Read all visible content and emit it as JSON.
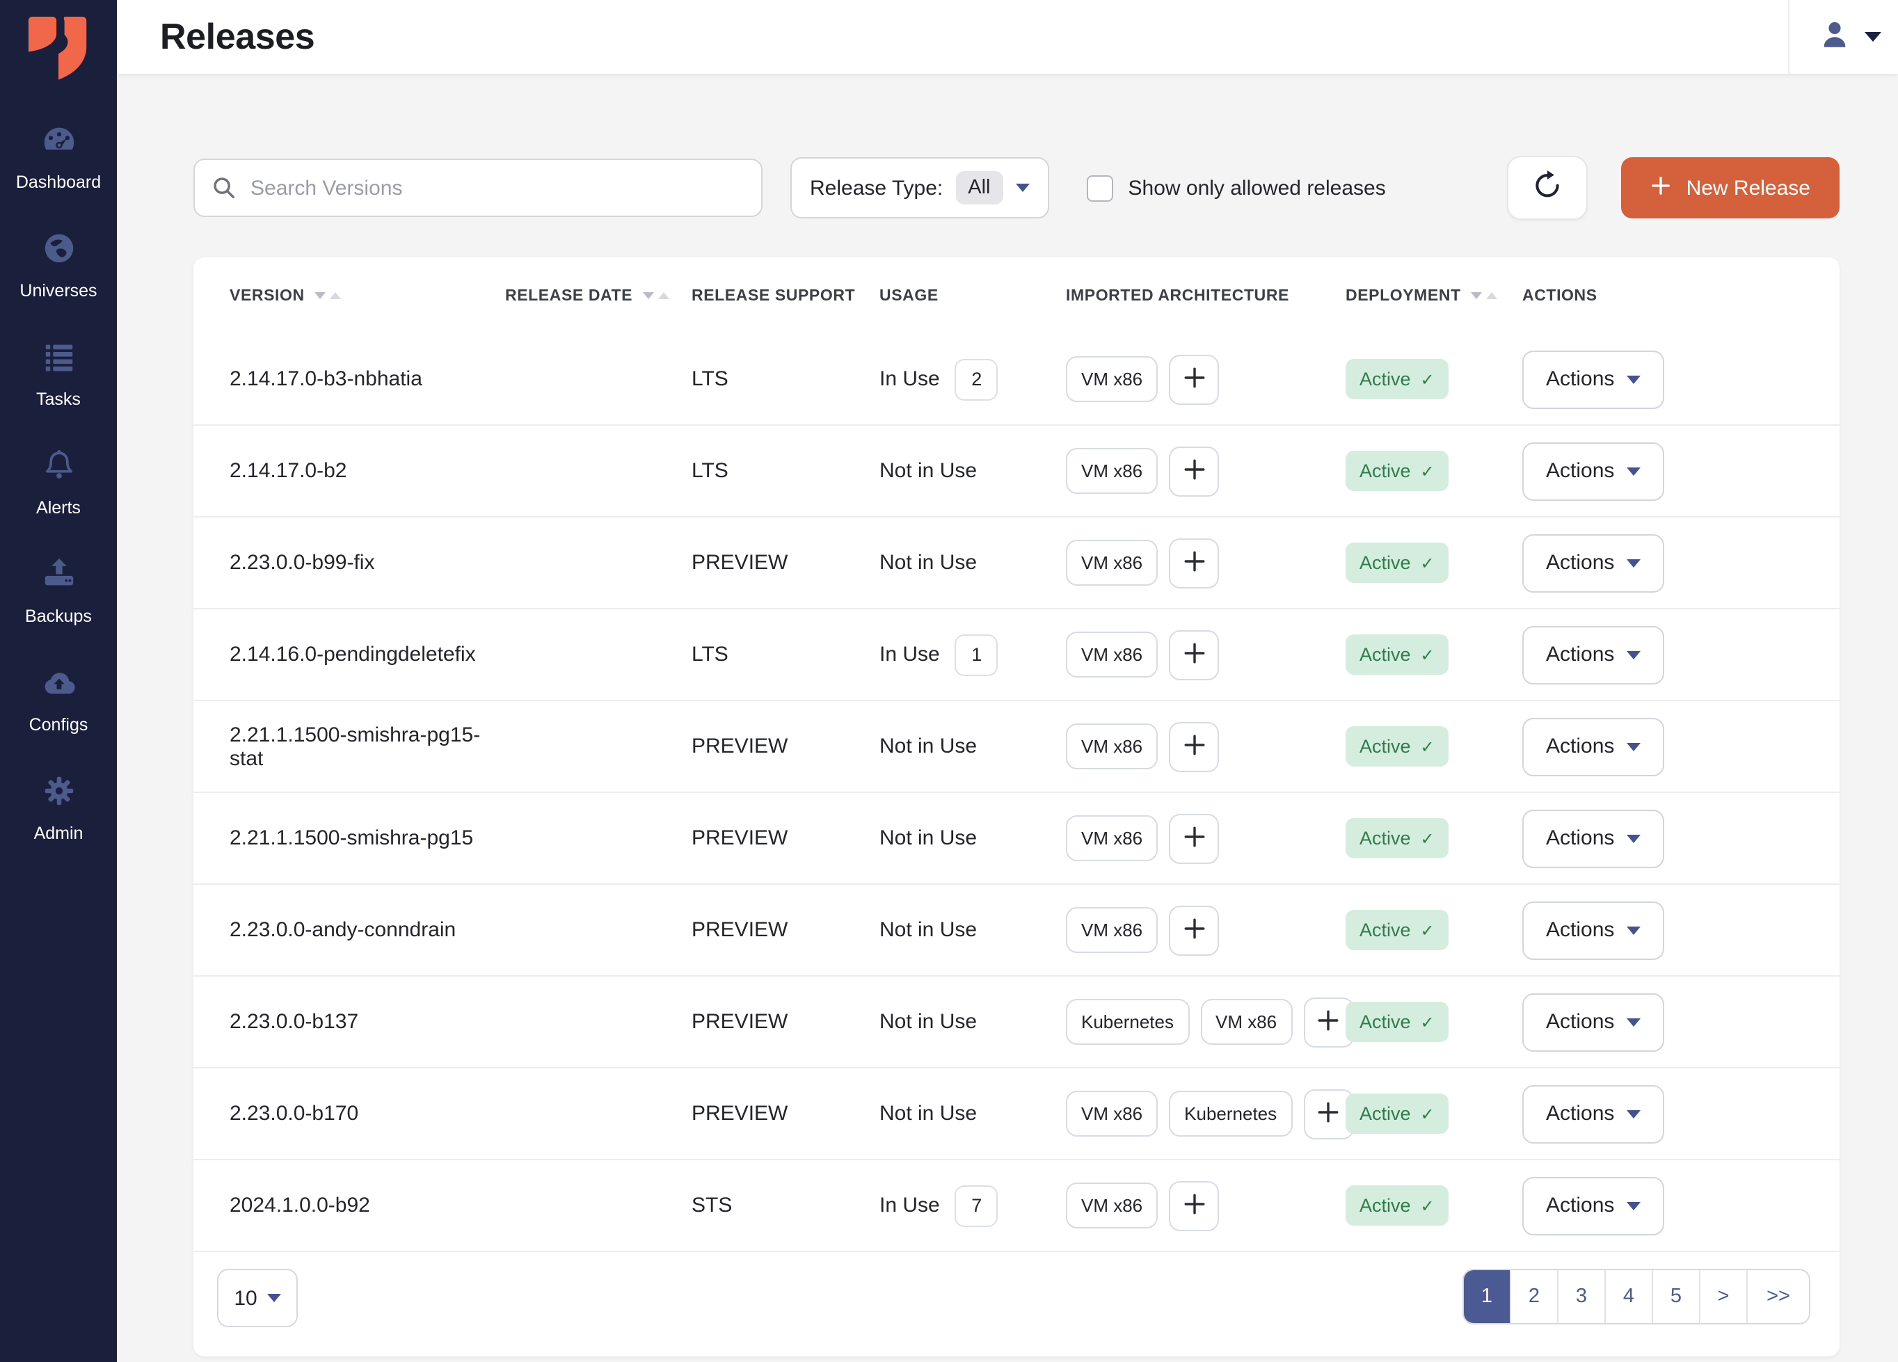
{
  "header": {
    "title": "Releases"
  },
  "sidebar": {
    "items": [
      {
        "id": "dashboard",
        "label": "Dashboard"
      },
      {
        "id": "universes",
        "label": "Universes"
      },
      {
        "id": "tasks",
        "label": "Tasks"
      },
      {
        "id": "alerts",
        "label": "Alerts"
      },
      {
        "id": "backups",
        "label": "Backups"
      },
      {
        "id": "configs",
        "label": "Configs"
      },
      {
        "id": "admin",
        "label": "Admin"
      }
    ]
  },
  "toolbar": {
    "search_placeholder": "Search Versions",
    "release_type_label": "Release Type:",
    "release_type_value": "All",
    "allowed_checkbox_label": "Show only allowed releases",
    "new_release_label": "New Release"
  },
  "table": {
    "columns": [
      {
        "label": "VERSION",
        "sortable": true
      },
      {
        "label": "RELEASE DATE",
        "sortable": true
      },
      {
        "label": "RELEASE SUPPORT",
        "sortable": false
      },
      {
        "label": "USAGE",
        "sortable": false
      },
      {
        "label": "IMPORTED ARCHITECTURE",
        "sortable": false
      },
      {
        "label": "DEPLOYMENT",
        "sortable": true
      },
      {
        "label": "ACTIONS",
        "sortable": false
      }
    ],
    "actions_label": "Actions",
    "deployment_check": "✓",
    "rows": [
      {
        "version": "2.14.17.0-b3-nbhatia",
        "release_date": "",
        "support": "LTS",
        "usage": "In Use",
        "usage_count": "2",
        "architectures": [
          "VM x86"
        ],
        "deployment": "Active"
      },
      {
        "version": "2.14.17.0-b2",
        "release_date": "",
        "support": "LTS",
        "usage": "Not in Use",
        "usage_count": null,
        "architectures": [
          "VM x86"
        ],
        "deployment": "Active"
      },
      {
        "version": "2.23.0.0-b99-fix",
        "release_date": "",
        "support": "PREVIEW",
        "usage": "Not in Use",
        "usage_count": null,
        "architectures": [
          "VM x86"
        ],
        "deployment": "Active"
      },
      {
        "version": "2.14.16.0-pendingdeletefix",
        "release_date": "",
        "support": "LTS",
        "usage": "In Use",
        "usage_count": "1",
        "architectures": [
          "VM x86"
        ],
        "deployment": "Active"
      },
      {
        "version": "2.21.1.1500-smishra-pg15-stat",
        "release_date": "",
        "support": "PREVIEW",
        "usage": "Not in Use",
        "usage_count": null,
        "architectures": [
          "VM x86"
        ],
        "deployment": "Active"
      },
      {
        "version": "2.21.1.1500-smishra-pg15",
        "release_date": "",
        "support": "PREVIEW",
        "usage": "Not in Use",
        "usage_count": null,
        "architectures": [
          "VM x86"
        ],
        "deployment": "Active"
      },
      {
        "version": "2.23.0.0-andy-conndrain",
        "release_date": "",
        "support": "PREVIEW",
        "usage": "Not in Use",
        "usage_count": null,
        "architectures": [
          "VM x86"
        ],
        "deployment": "Active"
      },
      {
        "version": "2.23.0.0-b137",
        "release_date": "",
        "support": "PREVIEW",
        "usage": "Not in Use",
        "usage_count": null,
        "architectures": [
          "Kubernetes",
          "VM x86"
        ],
        "deployment": "Active"
      },
      {
        "version": "2.23.0.0-b170",
        "release_date": "",
        "support": "PREVIEW",
        "usage": "Not in Use",
        "usage_count": null,
        "architectures": [
          "VM x86",
          "Kubernetes"
        ],
        "deployment": "Active"
      },
      {
        "version": "2024.1.0.0-b92",
        "release_date": "",
        "support": "STS",
        "usage": "In Use",
        "usage_count": "7",
        "architectures": [
          "VM x86"
        ],
        "deployment": "Active"
      }
    ]
  },
  "pagination": {
    "page_size": "10",
    "pages": [
      "1",
      "2",
      "3",
      "4",
      "5"
    ],
    "active_page": "1",
    "next_label": ">",
    "last_label": ">>"
  },
  "colors": {
    "sidebar_bg": "#1A1F3C",
    "sidebar_icon": "#4D5B8C",
    "accent_orange": "#D4613C",
    "active_badge_bg": "#D5EDDE",
    "active_badge_text": "#2E7D4B",
    "pagination_active": "#4C5A93"
  }
}
